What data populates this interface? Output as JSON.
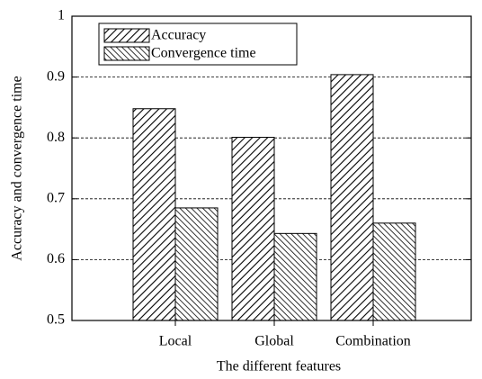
{
  "chart_data": {
    "type": "bar",
    "x_label": "The different features",
    "y_label": "Accuracy and convergence time",
    "categories": [
      "Local",
      "Global",
      "Combination"
    ],
    "series": [
      {
        "name": "Accuracy",
        "color": "#000000",
        "values": [
          0.848,
          0.801,
          0.904
        ]
      },
      {
        "name": "Convergence time",
        "color": "#000000",
        "values": [
          0.685,
          0.643,
          0.66
        ]
      }
    ],
    "ylim": [
      0.5,
      1.0
    ],
    "yticks": [
      0.5,
      0.6,
      0.7,
      0.8,
      0.9,
      1.0
    ],
    "grid": true,
    "legend": "top-left"
  }
}
